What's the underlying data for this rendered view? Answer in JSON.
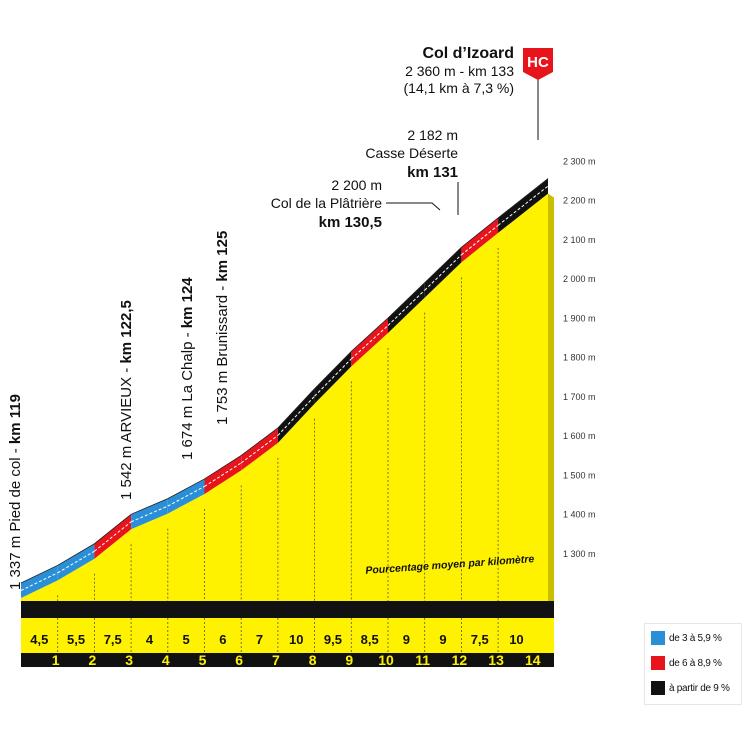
{
  "colors": {
    "yellow": "#fff200",
    "blue": "#2b8fd8",
    "red": "#e8141b",
    "black": "#111111",
    "hc_badge": "#e8141b"
  },
  "chart_data": {
    "type": "area",
    "title": "",
    "xlabel": "",
    "ylabel": "",
    "y_unit": "m",
    "ylim": [
      1300,
      2300
    ],
    "y_ticks": [
      "1 300 m",
      "1 400 m",
      "1 500 m",
      "1 600 m",
      "1 700 m",
      "1 800 m",
      "1 900 m",
      "2 000 m",
      "2 100 m",
      "2 200 m",
      "2 300 m"
    ],
    "x_ticks": [
      "1",
      "2",
      "3",
      "4",
      "5",
      "6",
      "7",
      "8",
      "9",
      "10",
      "11",
      "12",
      "13",
      "14"
    ],
    "caption": "Pourcentage moyen par kilomètre",
    "segments": [
      {
        "km": 1,
        "gradient": 4.5,
        "label": "4,5",
        "color": "blue"
      },
      {
        "km": 2,
        "gradient": 5.5,
        "label": "5,5",
        "color": "blue"
      },
      {
        "km": 3,
        "gradient": 7.5,
        "label": "7,5",
        "color": "red"
      },
      {
        "km": 4,
        "gradient": 4,
        "label": "4",
        "color": "blue"
      },
      {
        "km": 5,
        "gradient": 5,
        "label": "5",
        "color": "blue"
      },
      {
        "km": 6,
        "gradient": 6,
        "label": "6",
        "color": "red"
      },
      {
        "km": 7,
        "gradient": 7,
        "label": "7",
        "color": "red"
      },
      {
        "km": 8,
        "gradient": 10,
        "label": "10",
        "color": "black"
      },
      {
        "km": 9,
        "gradient": 9.5,
        "label": "9,5",
        "color": "black"
      },
      {
        "km": 10,
        "gradient": 8.5,
        "label": "8,5",
        "color": "red"
      },
      {
        "km": 11,
        "gradient": 9,
        "label": "9",
        "color": "black"
      },
      {
        "km": 12,
        "gradient": 9,
        "label": "9",
        "color": "black"
      },
      {
        "km": 13,
        "gradient": 7.5,
        "label": "7,5",
        "color": "red"
      },
      {
        "km": 14,
        "gradient": 10,
        "label": "10",
        "color": "black"
      }
    ],
    "annotations": [
      {
        "id": "pied",
        "lines": [
          "1 337 m Pied de col - "
        ],
        "bold": "km 119"
      },
      {
        "id": "arvieux",
        "lines": [
          "1 542 m ARVIEUX - "
        ],
        "bold": "km 122,5"
      },
      {
        "id": "chalp",
        "lines": [
          "1 674 m La Chalp - "
        ],
        "bold": "km 124"
      },
      {
        "id": "brunissard",
        "lines": [
          "1 753 m Brunissard - "
        ],
        "bold": "km 125"
      },
      {
        "id": "platriere",
        "lines": [
          "2 200 m",
          "Col de la Plâtrière"
        ],
        "bold": "km 130,5"
      },
      {
        "id": "casse",
        "lines": [
          "2 182 m",
          "Casse Déserte"
        ],
        "bold": "km 131"
      },
      {
        "id": "summit",
        "bold": "Col d’Izoard",
        "lines": [
          "2 360 m - km 133",
          "(14,1 km à 7,3 %)"
        ]
      }
    ],
    "category_badge": "HC",
    "legend": [
      {
        "label": "de 3 à 5,9 %",
        "color": "blue"
      },
      {
        "label": "de 6 à 8,9 %",
        "color": "red"
      },
      {
        "label": "à partir de 9 %",
        "color": "black"
      }
    ]
  }
}
